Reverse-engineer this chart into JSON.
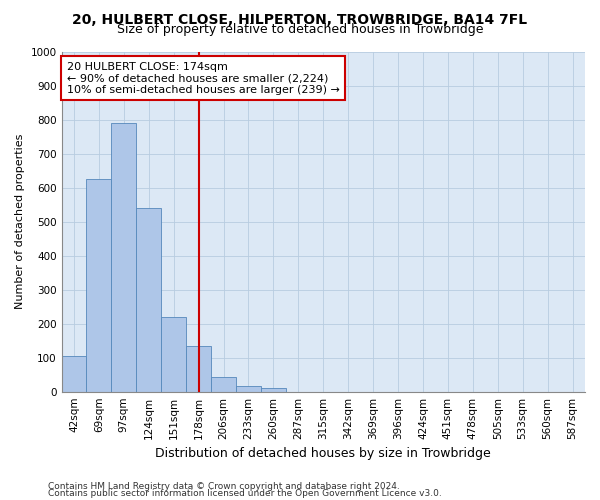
{
  "title": "20, HULBERT CLOSE, HILPERTON, TROWBRIDGE, BA14 7FL",
  "subtitle": "Size of property relative to detached houses in Trowbridge",
  "xlabel": "Distribution of detached houses by size in Trowbridge",
  "ylabel": "Number of detached properties",
  "bar_labels": [
    "42sqm",
    "69sqm",
    "97sqm",
    "124sqm",
    "151sqm",
    "178sqm",
    "206sqm",
    "233sqm",
    "260sqm",
    "287sqm",
    "315sqm",
    "342sqm",
    "369sqm",
    "396sqm",
    "424sqm",
    "451sqm",
    "478sqm",
    "505sqm",
    "533sqm",
    "560sqm",
    "587sqm"
  ],
  "bar_values": [
    105,
    625,
    790,
    540,
    220,
    135,
    42,
    18,
    12,
    0,
    0,
    0,
    0,
    0,
    0,
    0,
    0,
    0,
    0,
    0,
    0
  ],
  "bar_color": "#aec6e8",
  "bar_edge_color": "#5588bb",
  "vline_x": 5.0,
  "vline_color": "#cc0000",
  "annotation_text": "20 HULBERT CLOSE: 174sqm\n← 90% of detached houses are smaller (2,224)\n10% of semi-detached houses are larger (239) →",
  "annotation_box_color": "#ffffff",
  "annotation_box_edge": "#cc0000",
  "ylim": [
    0,
    1000
  ],
  "yticks": [
    0,
    100,
    200,
    300,
    400,
    500,
    600,
    700,
    800,
    900,
    1000
  ],
  "footer1": "Contains HM Land Registry data © Crown copyright and database right 2024.",
  "footer2": "Contains public sector information licensed under the Open Government Licence v3.0.",
  "plot_bg_color": "#dce8f5",
  "grid_color": "#b8cce0",
  "title_fontsize": 10,
  "subtitle_fontsize": 9,
  "axis_label_fontsize": 8,
  "tick_fontsize": 7.5,
  "annotation_fontsize": 8
}
